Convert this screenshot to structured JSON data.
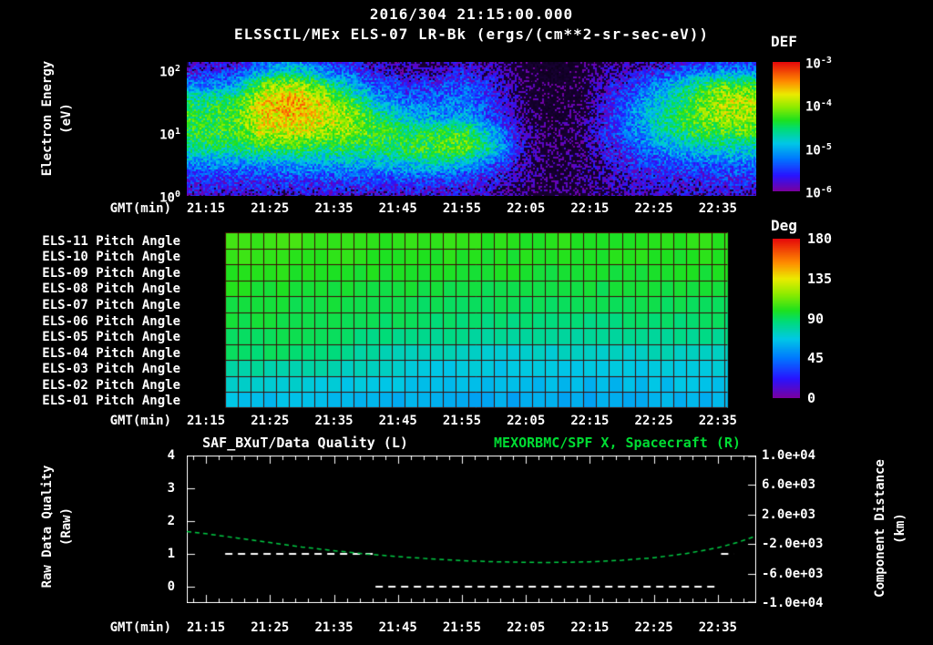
{
  "header": {
    "datetime": "2016/304 21:15:00.000",
    "title": "ELSSCIL/MEx ELS-07 LR-Bk  (ergs/(cm**2-sr-sec-eV))"
  },
  "axis": {
    "gmt_label": "GMT(min)",
    "tick_minutes": [
      0,
      10,
      20,
      30,
      40,
      50,
      60,
      70,
      80
    ],
    "tick_labels": [
      "21:15",
      "21:25",
      "21:35",
      "21:45",
      "21:55",
      "22:05",
      "22:15",
      "22:25",
      "22:35"
    ]
  },
  "spectrogram": {
    "ylabel_line1": "Electron Energy",
    "ylabel_line2": "(eV)",
    "yticks": [
      {
        "base": "10",
        "exp": "2"
      },
      {
        "base": "10",
        "exp": "1"
      },
      {
        "base": "10",
        "exp": "0"
      }
    ],
    "colorbar": {
      "label": "DEF",
      "ticks": [
        {
          "base": "10",
          "exp": "-3"
        },
        {
          "base": "10",
          "exp": "-4"
        },
        {
          "base": "10",
          "exp": "-5"
        },
        {
          "base": "10",
          "exp": "-6"
        }
      ]
    }
  },
  "pitch": {
    "row_labels": [
      "ELS-11 Pitch Angle",
      "ELS-10 Pitch Angle",
      "ELS-09 Pitch Angle",
      "ELS-08 Pitch Angle",
      "ELS-07 Pitch Angle",
      "ELS-06 Pitch Angle",
      "ELS-05 Pitch Angle",
      "ELS-04 Pitch Angle",
      "ELS-03 Pitch Angle",
      "ELS-02 Pitch Angle",
      "ELS-01 Pitch Angle"
    ],
    "colorbar": {
      "label": "Deg",
      "ticks": [
        "180",
        "135",
        "90",
        "45",
        "0"
      ]
    }
  },
  "bottom": {
    "title_left": "SAF_BXuT/Data Quality (L)",
    "title_right": "MEXORBMC/SPF X, Spacecraft (R)",
    "ylabel_left1": "Raw Data Quality",
    "ylabel_left2": "(Raw)",
    "ylabel_right1": "Component Distance",
    "ylabel_right2": "(km)",
    "left_ticks": [
      "4",
      "3",
      "2",
      "1",
      "0"
    ],
    "right_ticks": [
      "1.0e+04",
      "6.0e+03",
      "2.0e+03",
      "-2.0e+03",
      "-6.0e+03",
      "-1.0e+04"
    ]
  },
  "colors": {
    "background": "#000000",
    "text": "#ffffff",
    "title_right_green": "#00dd33",
    "spacecraft_line_green": "#00cc44",
    "quality_line_white": "#ffffff",
    "pitch_grid_line": "#3c0a05",
    "colormap_stops": [
      [
        0.0,
        [
          120,
          0,
          160
        ]
      ],
      [
        0.12,
        [
          40,
          20,
          255
        ]
      ],
      [
        0.25,
        [
          0,
          120,
          255
        ]
      ],
      [
        0.37,
        [
          0,
          200,
          230
        ]
      ],
      [
        0.48,
        [
          0,
          220,
          120
        ]
      ],
      [
        0.55,
        [
          30,
          225,
          30
        ]
      ],
      [
        0.65,
        [
          140,
          235,
          0
        ]
      ],
      [
        0.75,
        [
          235,
          235,
          0
        ]
      ],
      [
        0.85,
        [
          255,
          140,
          0
        ]
      ],
      [
        1.0,
        [
          230,
          10,
          10
        ]
      ]
    ]
  },
  "chart_data": [
    {
      "type": "heatmap",
      "name": "electron_energy_spectrogram",
      "title": "ELSSCIL/MEx ELS-07 LR-Bk",
      "units": "ergs/(cm**2-sr-sec-eV)",
      "xlabel": "GMT(min)",
      "ylabel": "Electron Energy (eV)",
      "x_range_min": [
        -3,
        86
      ],
      "x_start_min": 0,
      "x_step_min": 4.5,
      "y_log_range": [
        0,
        2.13
      ],
      "row_energies_ev": [
        178,
        100,
        56,
        32,
        18,
        10,
        5.6,
        3.2,
        1.8,
        1
      ],
      "log10_def_min": -6,
      "log10_def_max": -3,
      "values_log10_def": [
        [
          -6.0,
          -6.0,
          -5.6,
          -5.3,
          -5.6,
          -5.8,
          -6.0,
          -6.1,
          -6.1,
          -6.0,
          -6.1,
          -6.3,
          -6.4,
          -6.3,
          -6.1,
          -6.0,
          -6.0,
          -5.9,
          -5.8,
          -5.8
        ],
        [
          -5.7,
          -5.6,
          -5.1,
          -4.8,
          -5.2,
          -5.5,
          -5.8,
          -5.9,
          -5.9,
          -5.7,
          -5.9,
          -6.2,
          -6.4,
          -6.3,
          -6.0,
          -5.8,
          -5.6,
          -5.3,
          -5.2,
          -5.3
        ],
        [
          -5.2,
          -5.0,
          -4.1,
          -3.9,
          -4.3,
          -4.9,
          -5.4,
          -5.6,
          -5.5,
          -5.4,
          -5.7,
          -6.1,
          -6.3,
          -6.2,
          -5.8,
          -5.5,
          -5.0,
          -4.6,
          -4.2,
          -4.3
        ],
        [
          -4.5,
          -4.4,
          -3.7,
          -3.5,
          -3.8,
          -4.3,
          -5.0,
          -5.3,
          -5.3,
          -5.2,
          -5.6,
          -6.1,
          -6.3,
          -6.2,
          -5.7,
          -5.2,
          -4.8,
          -4.3,
          -3.9,
          -3.9
        ],
        [
          -4.4,
          -4.3,
          -3.7,
          -3.6,
          -3.8,
          -4.0,
          -4.5,
          -4.9,
          -5.1,
          -5.1,
          -5.5,
          -6.0,
          -6.3,
          -6.1,
          -5.6,
          -5.1,
          -4.6,
          -4.2,
          -4.0,
          -4.0
        ],
        [
          -4.4,
          -4.3,
          -3.9,
          -3.9,
          -4.0,
          -4.1,
          -4.3,
          -4.5,
          -4.4,
          -4.3,
          -5.0,
          -5.9,
          -6.2,
          -6.1,
          -5.6,
          -5.2,
          -4.7,
          -4.4,
          -4.3,
          -4.3
        ],
        [
          -4.6,
          -4.6,
          -4.4,
          -4.4,
          -4.5,
          -4.5,
          -4.5,
          -4.4,
          -4.3,
          -4.2,
          -4.8,
          -5.8,
          -6.2,
          -6.1,
          -5.7,
          -5.4,
          -5.1,
          -4.9,
          -4.8,
          -4.8
        ],
        [
          -5.2,
          -5.2,
          -5.1,
          -5.1,
          -5.1,
          -5.0,
          -5.0,
          -4.9,
          -4.8,
          -5.0,
          -5.4,
          -5.9,
          -6.2,
          -6.1,
          -5.8,
          -5.6,
          -5.5,
          -5.4,
          -5.3,
          -5.3
        ],
        [
          -5.6,
          -5.6,
          -5.6,
          -5.5,
          -5.5,
          -5.5,
          -5.5,
          -5.5,
          -5.5,
          -5.6,
          -5.7,
          -6.0,
          -6.2,
          -6.1,
          -5.9,
          -5.8,
          -5.7,
          -5.7,
          -5.6,
          -5.6
        ],
        [
          -5.8,
          -5.8,
          -5.8,
          -5.8,
          -5.8,
          -5.8,
          -5.8,
          -5.8,
          -5.8,
          -5.8,
          -5.9,
          -6.1,
          -6.2,
          -6.1,
          -6.0,
          -5.9,
          -5.9,
          -5.8,
          -5.8,
          -5.8
        ]
      ]
    },
    {
      "type": "heatmap",
      "name": "pitch_angles",
      "rows": [
        "ELS-11",
        "ELS-10",
        "ELS-09",
        "ELS-08",
        "ELS-07",
        "ELS-06",
        "ELS-05",
        "ELS-04",
        "ELS-03",
        "ELS-02",
        "ELS-01"
      ],
      "units": "Deg",
      "deg_min": 0,
      "deg_max": 180,
      "times_min": [
        3,
        15,
        30,
        45,
        60,
        81.5
      ],
      "data_t_range": [
        3,
        81.5
      ],
      "cell_minutes": 2,
      "values_deg": [
        [
          105,
          103,
          102,
          100,
          100,
          102
        ],
        [
          103,
          101,
          100,
          98,
          98,
          100
        ],
        [
          100,
          99,
          97,
          96,
          95,
          97
        ],
        [
          98,
          97,
          95,
          93,
          93,
          95
        ],
        [
          96,
          94,
          92,
          90,
          90,
          92
        ],
        [
          94,
          92,
          89,
          86,
          86,
          88
        ],
        [
          92,
          90,
          84,
          80,
          80,
          83
        ],
        [
          90,
          87,
          76,
          72,
          72,
          76
        ],
        [
          80,
          78,
          70,
          66,
          66,
          70
        ],
        [
          72,
          70,
          65,
          62,
          62,
          66
        ],
        [
          65,
          63,
          60,
          58,
          58,
          62
        ]
      ]
    },
    {
      "type": "line",
      "name": "quality_and_spacecraft_x",
      "x_range_min": [
        -3,
        86
      ],
      "left_axis": {
        "label": "Raw Data Quality (Raw)",
        "ticks": [
          "4",
          "3",
          "2",
          "1",
          "0"
        ],
        "tick_values": [
          4,
          3,
          2,
          1,
          0
        ],
        "range": [
          -0.5,
          4
        ]
      },
      "right_axis": {
        "label": "Component Distance (km)",
        "ticks": [
          "1.0e+04",
          "6.0e+03",
          "2.0e+03",
          "-2.0e+03",
          "-6.0e+03",
          "-1.0e+04"
        ],
        "tick_values": [
          10000,
          6000,
          2000,
          -2000,
          -6000,
          -10000
        ],
        "range": [
          -10000,
          10000
        ]
      },
      "series": [
        {
          "name": "SAF_BXuT/Data Quality (L)",
          "axis": "left",
          "style": "dashed",
          "color": "#ffffff",
          "segments": [
            {
              "t0": 3,
              "t1": 26.5,
              "value": 1
            },
            {
              "t0": 26.5,
              "t1": 79.5,
              "value": 0
            },
            {
              "t0": 80.5,
              "t1": 82.5,
              "value": 1
            }
          ]
        },
        {
          "name": "MEXORBMC/SPF X, Spacecraft (R)",
          "axis": "right",
          "style": "dashed",
          "color": "#00cc44",
          "points": [
            [
              -3,
              -300
            ],
            [
              0,
              -600
            ],
            [
              5,
              -1200
            ],
            [
              10,
              -1800
            ],
            [
              15,
              -2400
            ],
            [
              20,
              -2900
            ],
            [
              25,
              -3350
            ],
            [
              30,
              -3700
            ],
            [
              35,
              -4000
            ],
            [
              40,
              -4250
            ],
            [
              45,
              -4400
            ],
            [
              50,
              -4480
            ],
            [
              53,
              -4500
            ],
            [
              56,
              -4480
            ],
            [
              60,
              -4400
            ],
            [
              65,
              -4200
            ],
            [
              70,
              -3850
            ],
            [
              75,
              -3300
            ],
            [
              80,
              -2500
            ],
            [
              83,
              -1800
            ],
            [
              86,
              -900
            ]
          ]
        }
      ]
    }
  ]
}
